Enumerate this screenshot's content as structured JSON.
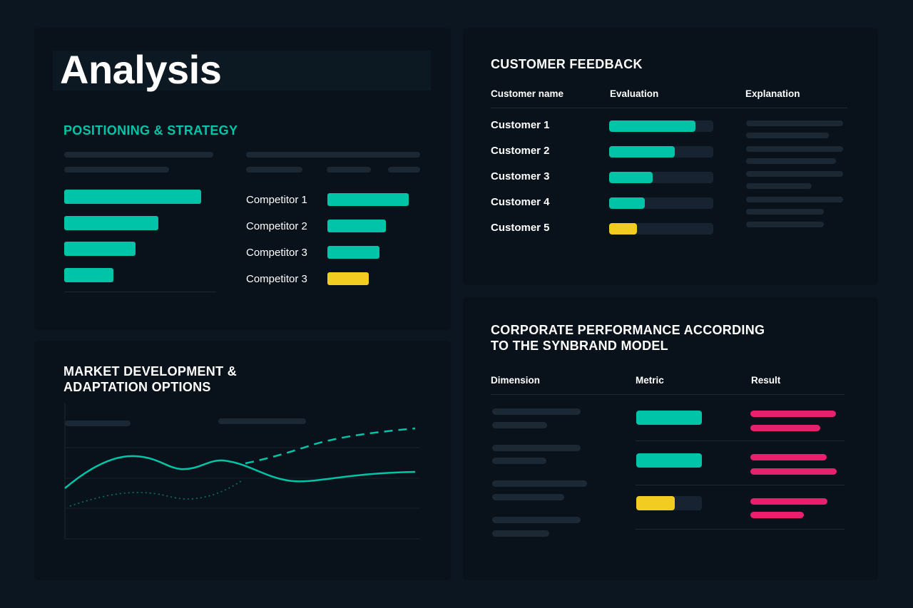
{
  "page": {
    "title": "Analysis"
  },
  "positioning": {
    "heading": "POSITIONING & STRATEGY",
    "bars": [
      {
        "value": 0.92,
        "color": "teal"
      },
      {
        "value": 0.63,
        "color": "teal"
      },
      {
        "value": 0.48,
        "color": "teal"
      },
      {
        "value": 0.33,
        "color": "teal"
      }
    ],
    "competitors": [
      {
        "label": "Competitor 1",
        "value": 0.98,
        "color": "teal"
      },
      {
        "label": "Competitor 2",
        "value": 0.71,
        "color": "teal"
      },
      {
        "label": "Competitor 3",
        "value": 0.63,
        "color": "teal"
      },
      {
        "label": "Competitor 3",
        "value": 0.5,
        "color": "yellow"
      }
    ]
  },
  "market": {
    "heading_line1": "MARKET DEVELOPMENT &",
    "heading_line2": "ADAPTATION OPTIONS"
  },
  "feedback": {
    "heading": "CUSTOMER FEEDBACK",
    "columns": [
      "Customer name",
      "Evaluation",
      "Explanation"
    ],
    "rows": [
      {
        "name": "Customer 1",
        "evaluation": 0.83,
        "color": "teal"
      },
      {
        "name": "Customer 2",
        "evaluation": 0.63,
        "color": "teal"
      },
      {
        "name": "Customer 3",
        "evaluation": 0.42,
        "color": "teal"
      },
      {
        "name": "Customer 4",
        "evaluation": 0.34,
        "color": "teal"
      },
      {
        "name": "Customer 5",
        "evaluation": 0.27,
        "color": "yellow"
      }
    ]
  },
  "corporate": {
    "heading_line1": "CORPORATE PERFORMANCE ACCORDING",
    "heading_line2": "TO THE SYNBRAND MODEL",
    "columns": [
      "Dimension",
      "Metric",
      "Result"
    ],
    "rows": [
      {
        "metric": 1.0,
        "metric_color": "teal"
      },
      {
        "metric": 1.0,
        "metric_color": "teal"
      },
      {
        "metric": 0.59,
        "metric_color": "yellow"
      }
    ]
  },
  "colors": {
    "teal": "#00c4a7",
    "yellow": "#f2cc21",
    "pink": "#e8206d",
    "background": "#0b1620"
  }
}
